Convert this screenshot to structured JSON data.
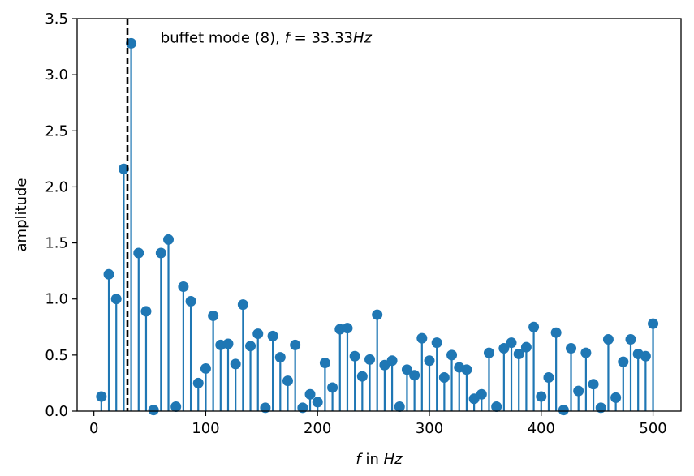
{
  "chart_data": {
    "type": "stem",
    "xlabel": {
      "symbol": "f",
      "middle": " in ",
      "unit": "Hz"
    },
    "ylabel": "amplitude",
    "xlim": [
      -15,
      525
    ],
    "ylim": [
      0,
      3.5
    ],
    "xticks": [
      0,
      100,
      200,
      300,
      400,
      500
    ],
    "xtick_labels": [
      "0",
      "100",
      "200",
      "300",
      "400",
      "500"
    ],
    "yticks": [
      0,
      0.5,
      1.0,
      1.5,
      2.0,
      2.5,
      3.0,
      3.5
    ],
    "ytick_labels": [
      "0.0",
      "0.5",
      "1.0",
      "1.5",
      "2.0",
      "2.5",
      "3.0",
      "3.5"
    ],
    "color": "#1f77b4",
    "marker_line": {
      "x": 30,
      "style": "dashed",
      "color": "#000000"
    },
    "annotation": {
      "prefix": "buffet mode (8), ",
      "symbol": "f",
      "equals": " = 33.33",
      "unit": "Hz",
      "anchor": [
        40,
        3.28
      ]
    },
    "x": [
      6.67,
      13.33,
      20,
      26.67,
      33.33,
      40,
      46.67,
      53.33,
      60,
      66.67,
      73.33,
      80,
      86.67,
      93.33,
      100,
      106.67,
      113.33,
      120,
      126.67,
      133.33,
      140,
      146.67,
      153.33,
      160,
      166.67,
      173.33,
      180,
      186.67,
      193.33,
      200,
      206.67,
      213.33,
      220,
      226.67,
      233.33,
      240,
      246.67,
      253.33,
      260,
      266.67,
      273.33,
      280,
      286.67,
      293.33,
      300,
      306.67,
      313.33,
      320,
      326.67,
      333.33,
      340,
      346.67,
      353.33,
      360,
      366.67,
      373.33,
      380,
      386.67,
      393.33,
      400,
      406.67,
      413.33,
      420,
      426.67,
      433.33,
      440,
      446.67,
      453.33,
      460,
      466.67,
      473.33,
      480,
      486.67,
      493.33,
      500
    ],
    "values": [
      0.13,
      1.22,
      1.0,
      2.16,
      3.28,
      1.41,
      0.89,
      0.01,
      1.41,
      1.53,
      0.04,
      1.11,
      0.98,
      0.25,
      0.38,
      0.85,
      0.59,
      0.6,
      0.42,
      0.95,
      0.58,
      0.69,
      0.03,
      0.67,
      0.48,
      0.27,
      0.59,
      0.03,
      0.15,
      0.08,
      0.43,
      0.21,
      0.73,
      0.74,
      0.49,
      0.31,
      0.46,
      0.86,
      0.41,
      0.45,
      0.04,
      0.37,
      0.32,
      0.65,
      0.45,
      0.61,
      0.3,
      0.5,
      0.39,
      0.37,
      0.11,
      0.15,
      0.52,
      0.04,
      0.56,
      0.61,
      0.51,
      0.57,
      0.75,
      0.13,
      0.3,
      0.7,
      0.01,
      0.56,
      0.18,
      0.52,
      0.24,
      0.03,
      0.64,
      0.12,
      0.44,
      0.64,
      0.51,
      0.49,
      0.78
    ]
  }
}
